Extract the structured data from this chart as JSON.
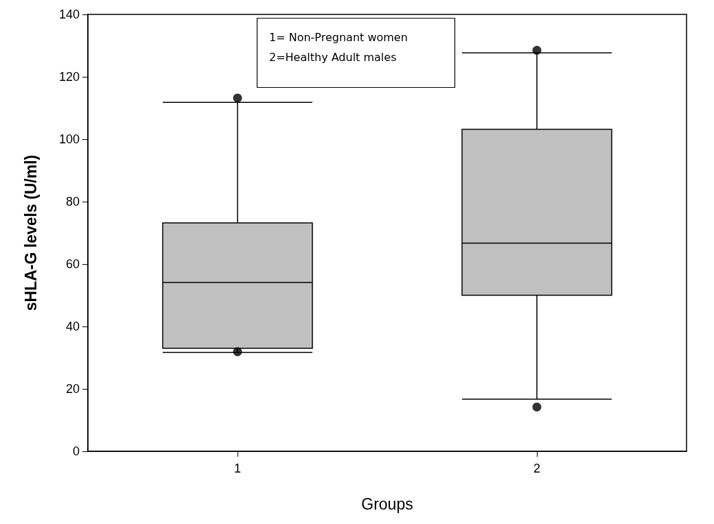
{
  "chart_data": {
    "type": "box",
    "xlabel": "Groups",
    "ylabel": "sHLA-G levels (U/ml)",
    "categories": [
      "1",
      "2"
    ],
    "boxes": [
      {
        "low": 31.7,
        "q1": 33.0,
        "median": 54.1,
        "q3": 73.2,
        "high": 111.8,
        "outliers": [
          113.2,
          31.9
        ]
      },
      {
        "low": 16.7,
        "q1": 50.0,
        "median": 66.7,
        "q3": 103.2,
        "high": 127.7,
        "outliers": [
          128.5,
          14.2
        ]
      }
    ],
    "color": "#c0c0c0",
    "ylim": [
      0,
      140
    ],
    "yticks": [
      0,
      20,
      40,
      60,
      80,
      100,
      120,
      140
    ],
    "grid": false,
    "annotations": [
      "1= Non-Pregnant women",
      "2=Healthy Adult males"
    ]
  }
}
